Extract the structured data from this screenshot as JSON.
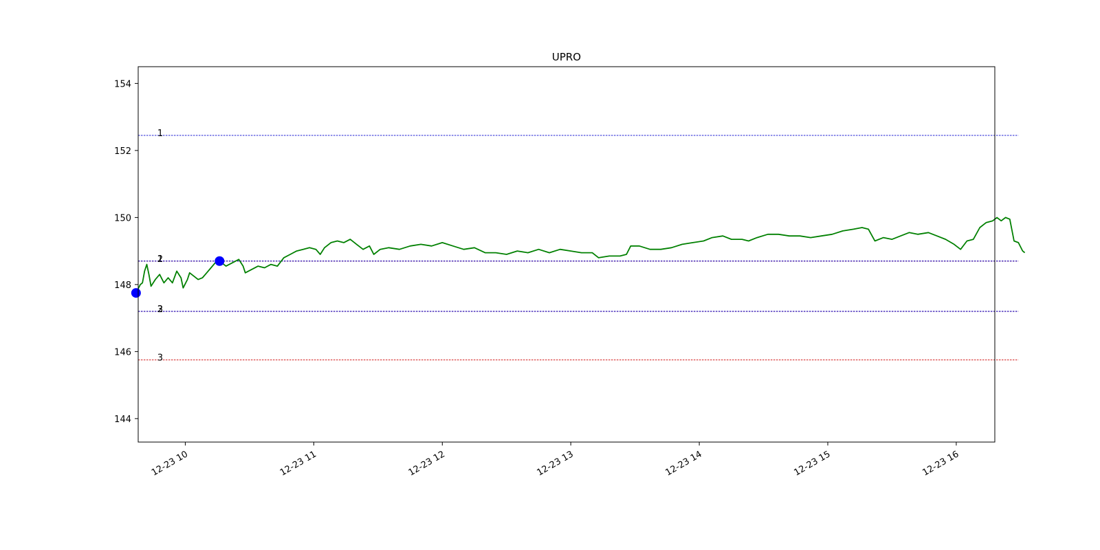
{
  "chart_data": {
    "type": "line",
    "title": "UPRO",
    "xlabel": "",
    "ylabel": "",
    "x_range": [
      "12-23 09:38",
      "12-23 16:18"
    ],
    "ylim": [
      143.3,
      154.5
    ],
    "y_ticks": [
      144,
      146,
      148,
      150,
      152,
      154
    ],
    "x_ticks": [
      {
        "t": "10:00",
        "label": "12-23 10"
      },
      {
        "t": "11:00",
        "label": "12-23 11"
      },
      {
        "t": "12:00",
        "label": "12-23 12"
      },
      {
        "t": "13:00",
        "label": "12-23 13"
      },
      {
        "t": "14:00",
        "label": "12-23 14"
      },
      {
        "t": "15:00",
        "label": "12-23 15"
      },
      {
        "t": "16:00",
        "label": "12-23 16"
      }
    ],
    "grid": false,
    "legend": "none",
    "series": [
      {
        "color": "#008000",
        "points": [
          [
            "09:37",
            147.75
          ],
          [
            "09:39",
            148.0
          ],
          [
            "09:40",
            148.05
          ],
          [
            "09:41",
            148.4
          ],
          [
            "09:42",
            148.6
          ],
          [
            "09:43",
            148.3
          ],
          [
            "09:44",
            147.95
          ],
          [
            "09:46",
            148.15
          ],
          [
            "09:48",
            148.3
          ],
          [
            "09:50",
            148.05
          ],
          [
            "09:52",
            148.2
          ],
          [
            "09:54",
            148.05
          ],
          [
            "09:56",
            148.4
          ],
          [
            "09:58",
            148.2
          ],
          [
            "09:59",
            147.9
          ],
          [
            "10:01",
            148.15
          ],
          [
            "10:02",
            148.35
          ],
          [
            "10:04",
            148.25
          ],
          [
            "10:06",
            148.15
          ],
          [
            "10:08",
            148.2
          ],
          [
            "10:10",
            148.35
          ],
          [
            "10:12",
            148.5
          ],
          [
            "10:14",
            148.65
          ],
          [
            "10:16",
            148.7
          ],
          [
            "10:19",
            148.55
          ],
          [
            "10:22",
            148.65
          ],
          [
            "10:25",
            148.75
          ],
          [
            "10:27",
            148.55
          ],
          [
            "10:28",
            148.35
          ],
          [
            "10:31",
            148.45
          ],
          [
            "10:34",
            148.55
          ],
          [
            "10:37",
            148.5
          ],
          [
            "10:40",
            148.6
          ],
          [
            "10:43",
            148.55
          ],
          [
            "10:46",
            148.8
          ],
          [
            "10:49",
            148.9
          ],
          [
            "10:52",
            149.0
          ],
          [
            "10:55",
            149.05
          ],
          [
            "10:58",
            149.1
          ],
          [
            "11:01",
            149.05
          ],
          [
            "11:03",
            148.9
          ],
          [
            "11:05",
            149.1
          ],
          [
            "11:08",
            149.25
          ],
          [
            "11:11",
            149.3
          ],
          [
            "11:14",
            149.25
          ],
          [
            "11:17",
            149.35
          ],
          [
            "11:20",
            149.2
          ],
          [
            "11:23",
            149.05
          ],
          [
            "11:26",
            149.15
          ],
          [
            "11:28",
            148.9
          ],
          [
            "11:31",
            149.05
          ],
          [
            "11:35",
            149.1
          ],
          [
            "11:40",
            149.05
          ],
          [
            "11:45",
            149.15
          ],
          [
            "11:50",
            149.2
          ],
          [
            "11:55",
            149.15
          ],
          [
            "12:00",
            149.25
          ],
          [
            "12:05",
            149.15
          ],
          [
            "12:10",
            149.05
          ],
          [
            "12:15",
            149.1
          ],
          [
            "12:20",
            148.95
          ],
          [
            "12:25",
            148.95
          ],
          [
            "12:30",
            148.9
          ],
          [
            "12:35",
            149.0
          ],
          [
            "12:40",
            148.95
          ],
          [
            "12:45",
            149.05
          ],
          [
            "12:50",
            148.95
          ],
          [
            "12:55",
            149.05
          ],
          [
            "13:00",
            149.0
          ],
          [
            "13:05",
            148.95
          ],
          [
            "13:10",
            148.95
          ],
          [
            "13:13",
            148.8
          ],
          [
            "13:18",
            148.85
          ],
          [
            "13:23",
            148.85
          ],
          [
            "13:26",
            148.9
          ],
          [
            "13:28",
            149.15
          ],
          [
            "13:32",
            149.15
          ],
          [
            "13:37",
            149.05
          ],
          [
            "13:42",
            149.05
          ],
          [
            "13:47",
            149.1
          ],
          [
            "13:52",
            149.2
          ],
          [
            "13:57",
            149.25
          ],
          [
            "14:02",
            149.3
          ],
          [
            "14:06",
            149.4
          ],
          [
            "14:11",
            149.45
          ],
          [
            "14:15",
            149.35
          ],
          [
            "14:20",
            149.35
          ],
          [
            "14:23",
            149.3
          ],
          [
            "14:27",
            149.4
          ],
          [
            "14:32",
            149.5
          ],
          [
            "14:37",
            149.5
          ],
          [
            "14:42",
            149.45
          ],
          [
            "14:47",
            149.45
          ],
          [
            "14:52",
            149.4
          ],
          [
            "14:57",
            149.45
          ],
          [
            "15:02",
            149.5
          ],
          [
            "15:07",
            149.6
          ],
          [
            "15:12",
            149.65
          ],
          [
            "15:16",
            149.7
          ],
          [
            "15:19",
            149.65
          ],
          [
            "15:22",
            149.3
          ],
          [
            "15:26",
            149.4
          ],
          [
            "15:30",
            149.35
          ],
          [
            "15:34",
            149.45
          ],
          [
            "15:38",
            149.55
          ],
          [
            "15:42",
            149.5
          ],
          [
            "15:47",
            149.55
          ],
          [
            "15:51",
            149.45
          ],
          [
            "15:55",
            149.35
          ],
          [
            "15:59",
            149.2
          ],
          [
            "16:02",
            149.05
          ],
          [
            "16:05",
            149.3
          ],
          [
            "16:08",
            149.35
          ],
          [
            "16:11",
            149.7
          ],
          [
            "16:14",
            149.85
          ],
          [
            "16:17",
            149.9
          ],
          [
            "16:19",
            150.0
          ],
          [
            "16:21",
            149.9
          ],
          [
            "16:23",
            150.0
          ],
          [
            "16:25",
            149.95
          ],
          [
            "16:27",
            149.3
          ],
          [
            "16:29",
            149.25
          ],
          [
            "16:31",
            149.0
          ],
          [
            "16:32",
            148.95
          ]
        ]
      }
    ],
    "markers": [
      {
        "t": "09:37",
        "value": 147.75,
        "color": "#0000ff"
      },
      {
        "t": "10:16",
        "value": 148.7,
        "color": "#0000ff"
      }
    ],
    "levels": [
      {
        "label": "1",
        "value": 152.45,
        "color": "#0000cc"
      },
      {
        "label": "1",
        "value": 148.7,
        "color": "#cc0000"
      },
      {
        "label": "2",
        "value": 148.7,
        "color": "#0000cc"
      },
      {
        "label": "2",
        "value": 147.2,
        "color": "#cc0000"
      },
      {
        "label": "3",
        "value": 147.2,
        "color": "#0000cc"
      },
      {
        "label": "3",
        "value": 145.75,
        "color": "#cc0000"
      }
    ],
    "level_range": [
      "09:38",
      "16:29"
    ]
  }
}
